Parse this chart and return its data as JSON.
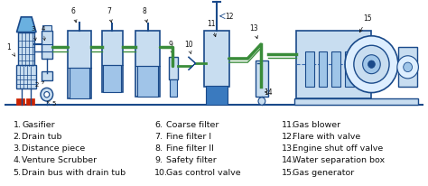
{
  "bg_color": "#ffffff",
  "legend_items": [
    {
      "num": "1.",
      "label": "Gasifier"
    },
    {
      "num": "2.",
      "label": "Drain tub"
    },
    {
      "num": "3.",
      "label": "Distance piece"
    },
    {
      "num": "4.",
      "label": "Venture Scrubber"
    },
    {
      "num": "5.",
      "label": "Drain bus with drain tub"
    }
  ],
  "legend_items_mid": [
    {
      "num": "6.",
      "label": "Coarse filter"
    },
    {
      "num": "7.",
      "label": "Fine filter I"
    },
    {
      "num": "8.",
      "label": "Fine filter II"
    },
    {
      "num": "9.",
      "label": "Safety filter"
    },
    {
      "num": "10.",
      "label": "Gas control valve"
    }
  ],
  "legend_items_right": [
    {
      "num": "11.",
      "label": "Gas blower"
    },
    {
      "num": "12.",
      "label": "Flare with valve"
    },
    {
      "num": "13.",
      "label": "Engine shut off valve"
    },
    {
      "num": "14.",
      "label": "Water separation box"
    },
    {
      "num": "15.",
      "label": "Gas generator"
    }
  ],
  "text_color": "#111111",
  "legend_font_size": 6.8,
  "fig_width": 4.74,
  "fig_height": 2.06,
  "dpi": 100,
  "blue_fill": "#c8ddf0",
  "blue_dark": "#1a4a8a",
  "blue_mid": "#3a6db5",
  "blue_bright": "#5b9bd5",
  "green_pipe": "#3a8c3a",
  "red_color": "#cc2200",
  "hopper_fill": "#6ab0e0",
  "white": "#ffffff"
}
